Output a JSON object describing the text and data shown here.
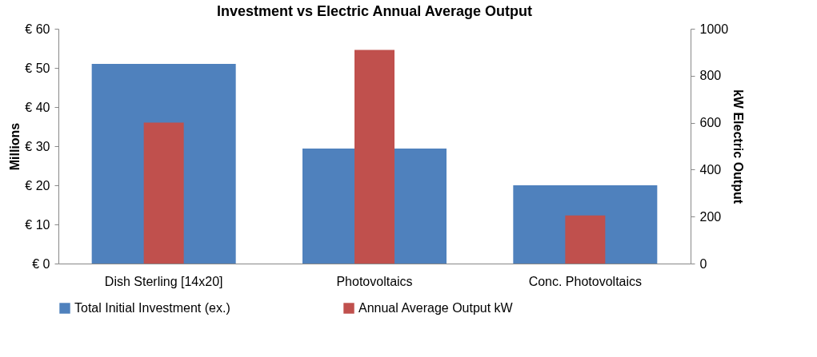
{
  "chart_data": {
    "type": "bar",
    "title": "Investment vs Electric  Annual Average Output",
    "categories": [
      "Dish Sterling [14x20]",
      "Photovoltaics",
      "Conc. Photovoltaics"
    ],
    "series": [
      {
        "name": "Total Initial Investment (ex.)",
        "color": "#4f81bd",
        "values": [
          51,
          29.4,
          20
        ]
      },
      {
        "name": "Annual Average Output kW",
        "color": "#c0504d",
        "values": [
          600,
          910,
          205
        ],
        "axis": "y2"
      }
    ],
    "ylabel": "Millions",
    "y2label": "kW Electric Output",
    "ylim": [
      0,
      60
    ],
    "yticks": [
      {
        "value": 0,
        "label": "€ 0"
      },
      {
        "value": 10,
        "label": "€ 10"
      },
      {
        "value": 20,
        "label": "€ 20"
      },
      {
        "value": 30,
        "label": "€ 30"
      },
      {
        "value": 40,
        "label": "€ 40"
      },
      {
        "value": 50,
        "label": "€ 50"
      },
      {
        "value": 60,
        "label": "€ 60"
      }
    ],
    "y2lim": [
      0,
      1000
    ],
    "y2ticks": [
      0,
      200,
      400,
      600,
      800,
      1000
    ],
    "grid": false,
    "legend": "bottom"
  }
}
